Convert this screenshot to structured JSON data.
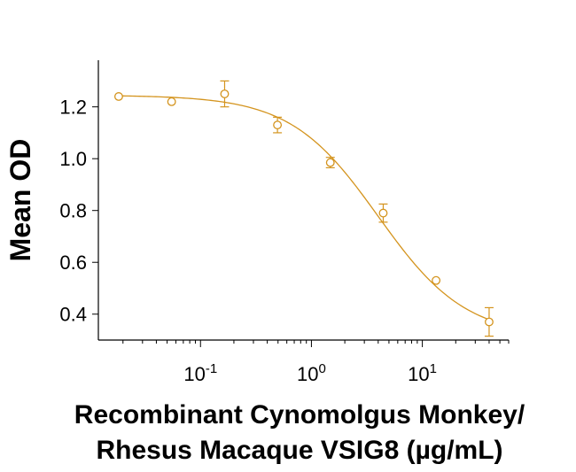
{
  "chart_data": {
    "type": "scatter",
    "title": "",
    "xlabel_lines": [
      "Recombinant Cynomolgus Monkey/",
      "Rhesus Macaque VSIG8 (µg/mL)"
    ],
    "ylabel": "Mean OD",
    "x_scale": "log",
    "xlim": [
      0.012,
      60
    ],
    "ylim": [
      0.3,
      1.38
    ],
    "x_ticks": [
      {
        "value": 0.1,
        "base": "10",
        "exp": "-1"
      },
      {
        "value": 1,
        "base": "10",
        "exp": "0"
      },
      {
        "value": 10,
        "base": "10",
        "exp": "1"
      }
    ],
    "y_ticks": [
      0.4,
      0.6,
      0.8,
      1.0,
      1.2
    ],
    "y_tick_labels": [
      "0.4",
      "0.6",
      "0.8",
      "1.0",
      "1.2"
    ],
    "color": "#D4941E",
    "series": [
      {
        "points": [
          {
            "x": 0.0183,
            "y": 1.24,
            "err": 0
          },
          {
            "x": 0.0549,
            "y": 1.22,
            "err": 0
          },
          {
            "x": 0.165,
            "y": 1.25,
            "err": 0.05
          },
          {
            "x": 0.494,
            "y": 1.13,
            "err": 0.03
          },
          {
            "x": 1.48,
            "y": 0.985,
            "err": 0.02
          },
          {
            "x": 4.44,
            "y": 0.79,
            "err": 0.035
          },
          {
            "x": 13.3,
            "y": 0.53,
            "err": 0
          },
          {
            "x": 40,
            "y": 0.37,
            "err": 0.055
          }
        ],
        "fit": {
          "model": "4PL",
          "top": 1.245,
          "bottom": 0.31,
          "ec50": 4.0,
          "hill": 1.1
        }
      }
    ]
  }
}
